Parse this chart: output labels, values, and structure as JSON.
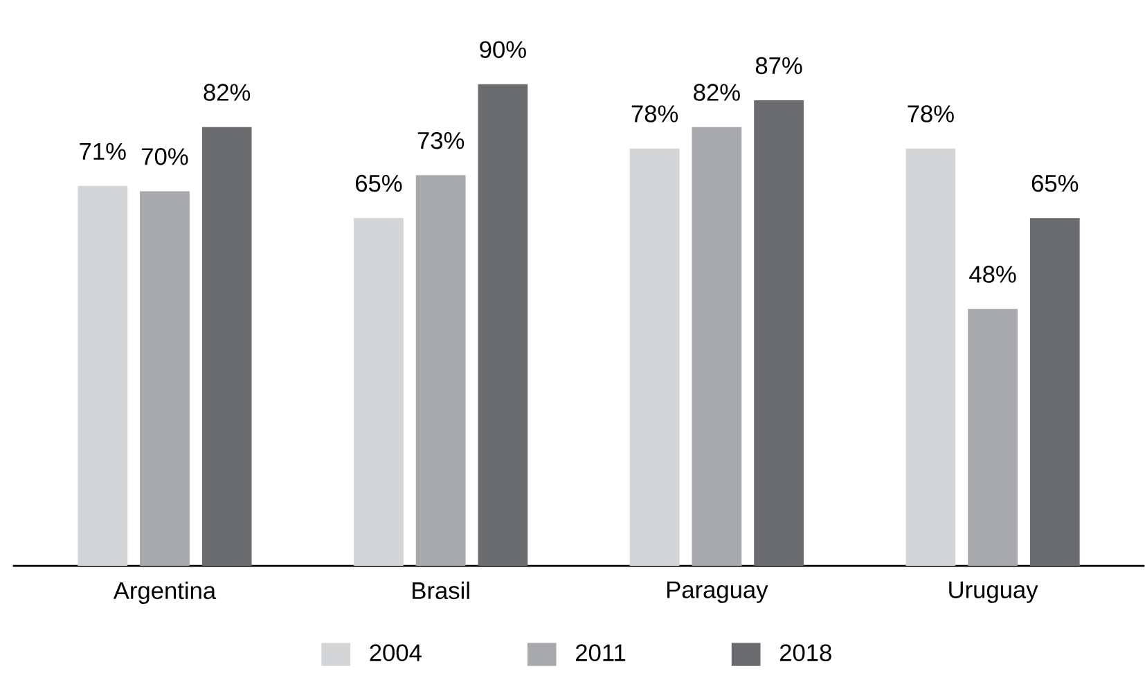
{
  "chart_data": {
    "type": "bar",
    "categories": [
      "Argentina",
      "Brasil",
      "Paraguay",
      "Uruguay"
    ],
    "series": [
      {
        "name": "2004",
        "color": "#d4d5d7",
        "values": [
          71,
          65,
          78,
          78
        ],
        "value_labels": [
          "71%",
          "65%",
          "78%",
          "78%"
        ]
      },
      {
        "name": "2011",
        "color": "#a8a9ad",
        "values": [
          70,
          73,
          82,
          48
        ],
        "value_labels": [
          "70%",
          "73%",
          "82%",
          "48%"
        ]
      },
      {
        "name": "2018",
        "color": "#6b6c70",
        "values": [
          82,
          90,
          87,
          65
        ],
        "value_labels": [
          "82%",
          "90%",
          "87%",
          "65%"
        ]
      }
    ],
    "legend": "bottom",
    "grid": false,
    "tick_labels": "x"
  }
}
